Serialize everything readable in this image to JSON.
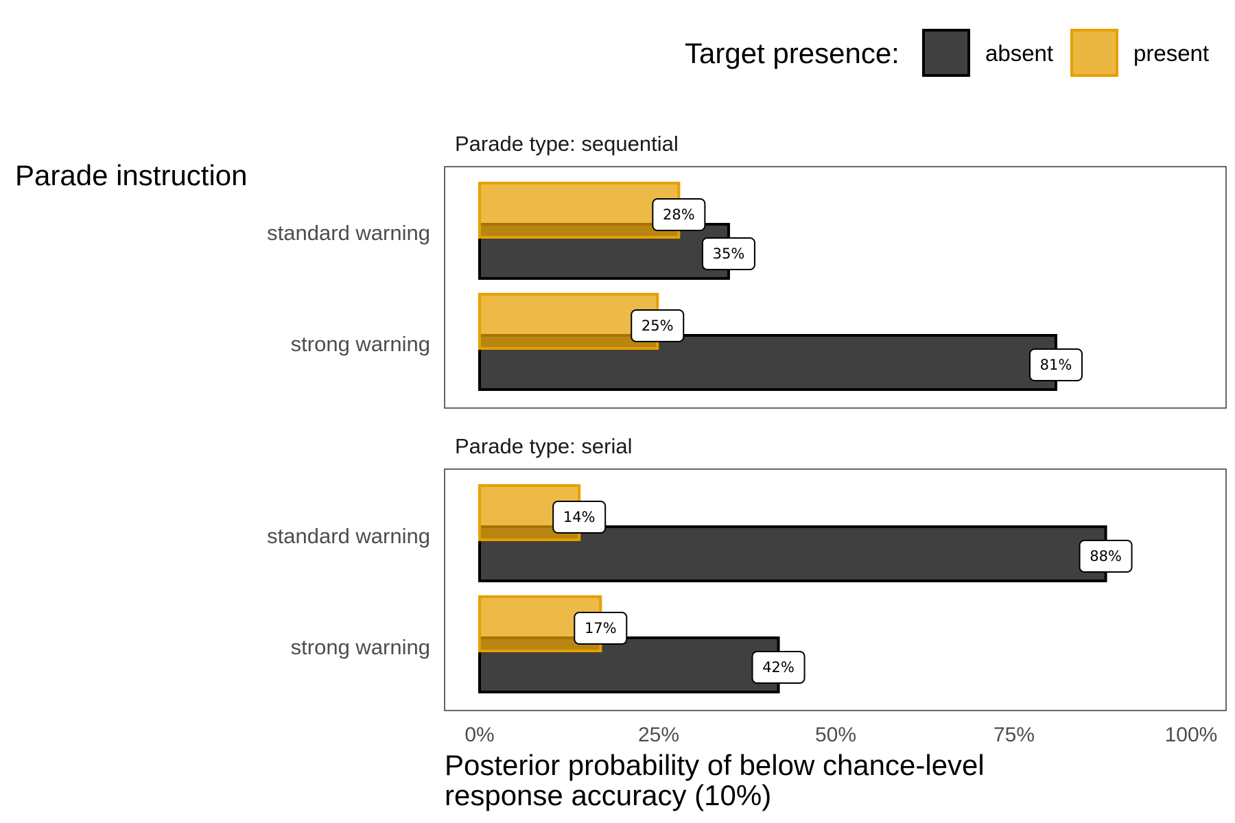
{
  "legend": {
    "title": "Target presence:",
    "items": [
      {
        "label": "absent",
        "color": "#404040",
        "border": "#000000"
      },
      {
        "label": "present",
        "color": "#E69F00",
        "border": "#E69F00"
      }
    ]
  },
  "chart_data": {
    "type": "bar",
    "orientation": "horizontal",
    "y_axis_title": "Parade instruction",
    "x_axis_title_line1": "Posterior probability of below chance-level",
    "x_axis_title_line2": "response accuracy (10%)",
    "xlim": [
      0,
      100
    ],
    "x_ticks": [
      0,
      25,
      50,
      75,
      100
    ],
    "x_tick_labels": [
      "0%",
      "25%",
      "50%",
      "75%",
      "100%"
    ],
    "categories": [
      "standard warning",
      "strong warning"
    ],
    "legend_position": "top-right",
    "grid": false,
    "panels": [
      {
        "title": "Parade type: sequential",
        "series": [
          {
            "name": "absent",
            "values": [
              35,
              81
            ],
            "labels": [
              "35%",
              "81%"
            ]
          },
          {
            "name": "present",
            "values": [
              28,
              25
            ],
            "labels": [
              "28%",
              "25%"
            ]
          }
        ]
      },
      {
        "title": "Parade type: serial",
        "series": [
          {
            "name": "absent",
            "values": [
              88,
              42
            ],
            "labels": [
              "88%",
              "42%"
            ]
          },
          {
            "name": "present",
            "values": [
              14,
              17
            ],
            "labels": [
              "14%",
              "17%"
            ]
          }
        ]
      }
    ]
  }
}
